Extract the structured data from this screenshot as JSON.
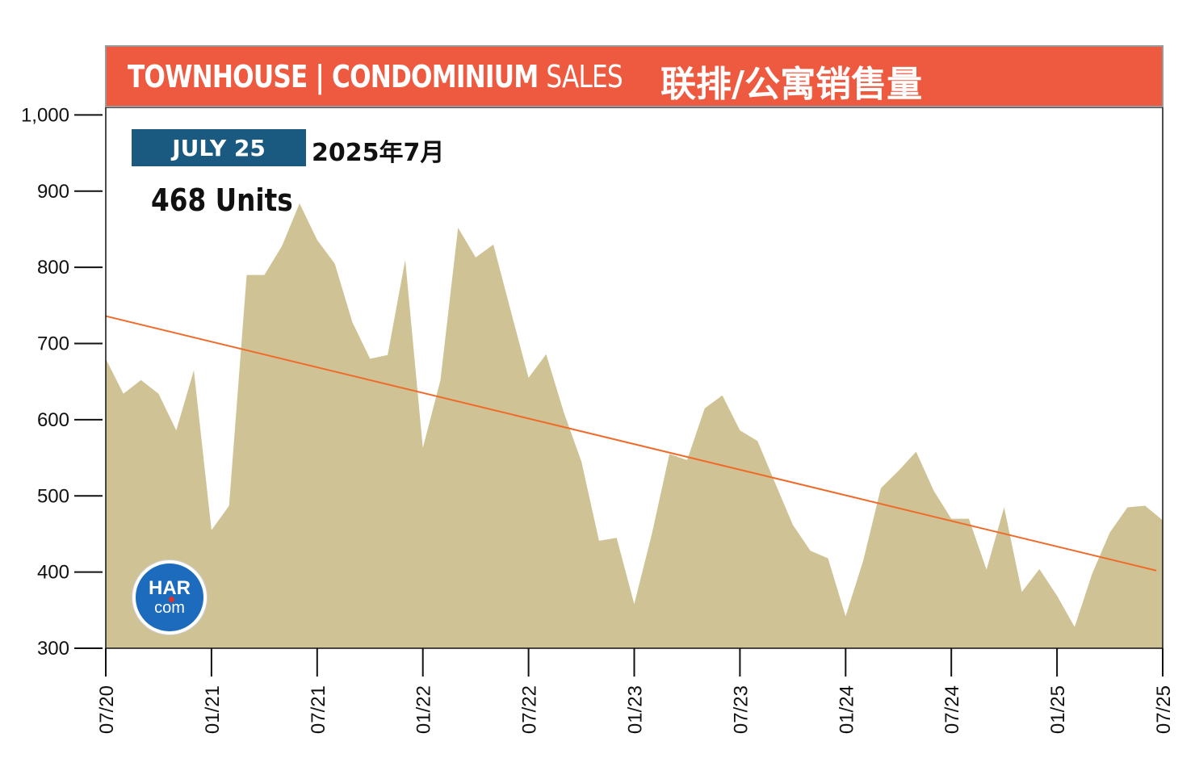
{
  "header": {
    "title_bold": "TOWNHOUSE | CONDOMINIUM",
    "title_light": "SALES",
    "title_cn": "联排/公寓销售量"
  },
  "badge": {
    "date_label": "JULY 25",
    "date_cn": "2025年7月"
  },
  "summary": {
    "units": "468 Units"
  },
  "logo": {
    "har": "HAR",
    "com": "com"
  },
  "colors": {
    "header": "#ee5a40",
    "badge": "#1a5a80",
    "area": "#cfc395",
    "trend": "#f06a2a",
    "logo": "#1c6bbd"
  },
  "chart_data": {
    "type": "area",
    "ylim": [
      300,
      1000
    ],
    "yticks": [
      "300",
      "400",
      "500",
      "600",
      "700",
      "800",
      "900",
      "1,000"
    ],
    "xlim": [
      0,
      60
    ],
    "xticks": [
      {
        "label": "07/20",
        "x": 0
      },
      {
        "label": "01/21",
        "x": 6
      },
      {
        "label": "07/21",
        "x": 12
      },
      {
        "label": "01/22",
        "x": 18
      },
      {
        "label": "07/22",
        "x": 24
      },
      {
        "label": "01/23",
        "x": 30
      },
      {
        "label": "07/23",
        "x": 36
      },
      {
        "label": "01/24",
        "x": 42
      },
      {
        "label": "07/24",
        "x": 48
      },
      {
        "label": "01/25",
        "x": 54
      },
      {
        "label": "07/25",
        "x": 60
      }
    ],
    "values": [
      680,
      634,
      652,
      634,
      586,
      665,
      455,
      487,
      790,
      790,
      828,
      884,
      836,
      805,
      728,
      680,
      685,
      810,
      563,
      652,
      852,
      813,
      830,
      742,
      655,
      686,
      610,
      545,
      441,
      445,
      358,
      450,
      555,
      547,
      615,
      632,
      586,
      572,
      517,
      462,
      428,
      418,
      342,
      415,
      510,
      533,
      558,
      507,
      470,
      470,
      403,
      485,
      374,
      404,
      369,
      328,
      398,
      452,
      485,
      487,
      468
    ],
    "trend": {
      "x0": 0,
      "y0": 736,
      "x1": 60,
      "y1": 402
    }
  }
}
